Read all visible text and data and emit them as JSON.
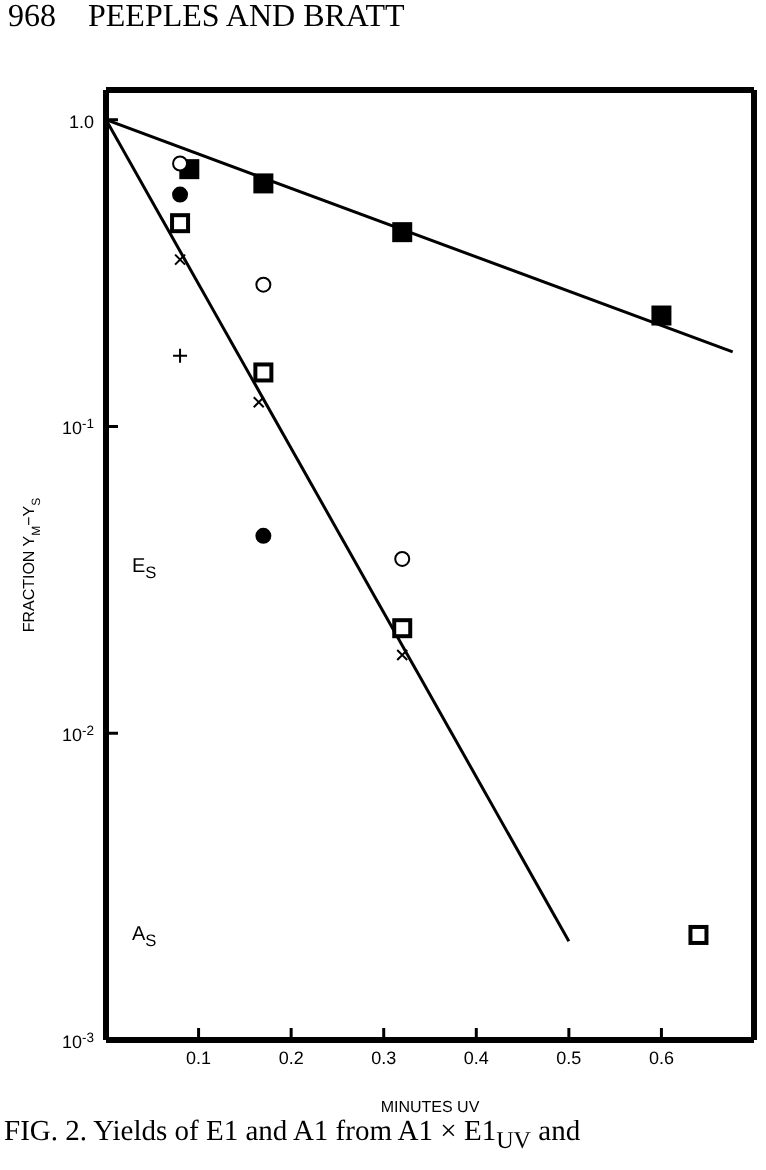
{
  "chart_data": {
    "type": "scatter",
    "xlabel": "MINUTES UV",
    "ylabel": "FRACTION Y$_{M}$−Y$_{S}$",
    "xlim": [
      0,
      0.7
    ],
    "xticks": [
      0.1,
      0.2,
      0.3,
      0.4,
      0.5,
      0.6
    ],
    "ylim": [
      0.001,
      1.25
    ],
    "yticks": [
      {
        "value": 1,
        "label": "1.0"
      },
      {
        "value": 0.1,
        "label": "10$^{-1}$"
      },
      {
        "value": 0.01,
        "label": "10$^{-2}$"
      },
      {
        "value": 0.001,
        "label": "10$^{-3}$"
      }
    ],
    "log": "y",
    "grid": false,
    "legend": false,
    "series": [
      {
        "marker": "square",
        "color": "#000000",
        "x": [
          0.09,
          0.17,
          0.32,
          0.6
        ],
        "values": [
          0.69,
          0.62,
          0.43,
          0.23
        ]
      },
      {
        "marker": "square",
        "color": "#ffffff",
        "x": [
          0.08,
          0.17,
          0.32,
          0.64
        ],
        "values": [
          0.46,
          0.15,
          0.022,
          0.0022
        ]
      },
      {
        "marker": "circle",
        "color": "#ffffff",
        "x": [
          0.08,
          0.17,
          0.32
        ],
        "values": [
          0.72,
          0.29,
          0.037
        ]
      },
      {
        "marker": "circle",
        "color": "#000000",
        "x": [
          0.08,
          0.17
        ],
        "values": [
          0.57,
          0.044
        ]
      },
      {
        "marker": "cross",
        "color": "#000000",
        "x": [
          0.08,
          0.165,
          0.32
        ],
        "values": [
          0.35,
          0.12,
          0.018
        ]
      },
      {
        "marker": "plus",
        "color": "#000000",
        "x": [
          0.08
        ],
        "values": [
          0.17
        ]
      },
      {
        "type": "line",
        "marker": "none",
        "line_style": "solid",
        "color": "#000000",
        "x": [
          0,
          0.677
        ],
        "values": [
          1.0,
          0.175
        ]
      },
      {
        "type": "line",
        "marker": "none",
        "line_style": "solid",
        "color": "#000000",
        "x": [
          0,
          0.5
        ],
        "values": [
          1.0,
          0.0021
        ]
      }
    ],
    "annotations": [
      "968    PEEPLES AND BRATT",
      "E$_{S}$",
      "A$_{S}$",
      "FIG. 2. Yields of E1 and A1 from A1 × E1$_{UV}$ and"
    ]
  }
}
